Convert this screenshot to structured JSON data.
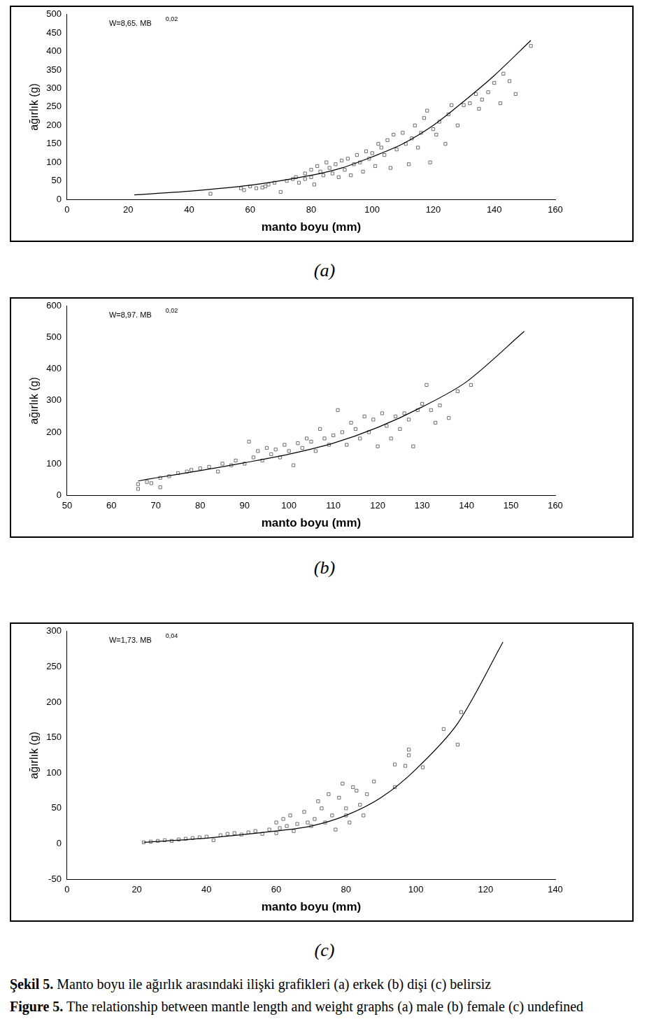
{
  "chart_data": [
    {
      "type": "scatter",
      "caption": "(a)",
      "x_label": "manto boyu (mm)",
      "y_label": "ağırlık (g)",
      "annotation": {
        "text": "W=8,65. MB",
        "superscript": "0,02"
      },
      "xlim": [
        0,
        160
      ],
      "xticks": [
        0,
        20,
        40,
        60,
        80,
        100,
        120,
        140,
        160
      ],
      "ylim": [
        0,
        500
      ],
      "yticks": [
        0,
        50,
        100,
        150,
        200,
        250,
        300,
        350,
        400,
        450,
        500
      ],
      "grid": false,
      "series": [
        {
          "type": "scatter",
          "marker": "square",
          "color": "#6e6e6e",
          "x": [
            47,
            57,
            58,
            60,
            62,
            64,
            65,
            66,
            68,
            70,
            72,
            74,
            75,
            76,
            78,
            78,
            80,
            80,
            81,
            82,
            83,
            84,
            85,
            86,
            87,
            88,
            89,
            90,
            91,
            92,
            93,
            94,
            95,
            96,
            97,
            98,
            99,
            100,
            101,
            102,
            103,
            104,
            105,
            106,
            107,
            108,
            110,
            111,
            112,
            113,
            114,
            115,
            116,
            117,
            118,
            119,
            120,
            121,
            122,
            124,
            125,
            126,
            128,
            130,
            132,
            134,
            135,
            136,
            138,
            140,
            142,
            143,
            145,
            147,
            152
          ],
          "values": [
            15,
            30,
            25,
            35,
            30,
            32,
            35,
            40,
            45,
            20,
            50,
            55,
            60,
            45,
            55,
            70,
            60,
            80,
            40,
            90,
            75,
            65,
            100,
            85,
            70,
            95,
            60,
            105,
            80,
            110,
            65,
            95,
            120,
            100,
            75,
            130,
            110,
            125,
            90,
            150,
            140,
            120,
            160,
            85,
            175,
            135,
            180,
            150,
            95,
            165,
            200,
            140,
            180,
            220,
            240,
            100,
            190,
            175,
            210,
            150,
            230,
            255,
            200,
            255,
            260,
            285,
            245,
            270,
            290,
            315,
            260,
            340,
            320,
            285,
            415
          ]
        },
        {
          "type": "line",
          "line_style": "solid",
          "color": "#000000",
          "x": [
            22,
            40,
            60,
            80,
            90,
            100,
            110,
            120,
            130,
            140,
            152
          ],
          "values": [
            12,
            22,
            38,
            65,
            85,
            115,
            150,
            200,
            265,
            335,
            430
          ]
        }
      ]
    },
    {
      "type": "scatter",
      "caption": "(b)",
      "x_label": "manto boyu (mm)",
      "y_label": "ağırlık (g)",
      "annotation": {
        "text": "W=8,97. MB",
        "superscript": "0,02"
      },
      "xlim": [
        50,
        160
      ],
      "xticks": [
        50,
        60,
        70,
        80,
        90,
        100,
        110,
        120,
        130,
        140,
        150,
        160
      ],
      "ylim": [
        0,
        600
      ],
      "yticks": [
        0,
        100,
        200,
        300,
        400,
        500,
        600
      ],
      "grid": false,
      "series": [
        {
          "type": "scatter",
          "marker": "square",
          "color": "#6e6e6e",
          "x": [
            66,
            66,
            68,
            69,
            71,
            71,
            73,
            75,
            77,
            78,
            80,
            82,
            84,
            85,
            87,
            88,
            90,
            91,
            92,
            93,
            94,
            95,
            96,
            97,
            98,
            99,
            100,
            101,
            102,
            103,
            104,
            105,
            106,
            107,
            108,
            109,
            110,
            111,
            112,
            113,
            114,
            115,
            116,
            117,
            118,
            119,
            120,
            121,
            122,
            123,
            124,
            125,
            126,
            127,
            128,
            129,
            130,
            131,
            132,
            133,
            134,
            136,
            138,
            141
          ],
          "values": [
            20,
            35,
            42,
            38,
            25,
            55,
            60,
            70,
            75,
            80,
            85,
            90,
            75,
            100,
            95,
            110,
            100,
            170,
            120,
            140,
            110,
            150,
            130,
            145,
            120,
            160,
            140,
            95,
            165,
            150,
            180,
            170,
            140,
            210,
            180,
            160,
            190,
            270,
            200,
            160,
            230,
            210,
            180,
            250,
            200,
            240,
            155,
            260,
            220,
            180,
            250,
            210,
            260,
            240,
            155,
            270,
            290,
            350,
            270,
            230,
            285,
            245,
            330,
            350
          ]
        },
        {
          "type": "line",
          "line_style": "solid",
          "color": "#000000",
          "x": [
            66,
            70,
            80,
            90,
            100,
            110,
            120,
            130,
            140,
            153
          ],
          "values": [
            45,
            55,
            78,
            103,
            130,
            165,
            215,
            280,
            360,
            520
          ]
        }
      ]
    },
    {
      "type": "scatter",
      "caption": "(c)",
      "x_label": "manto boyu (mm)",
      "y_label": "ağırlık (g)",
      "annotation": {
        "text": "W=1,73. MB",
        "superscript": "0,04"
      },
      "xlim": [
        0,
        140
      ],
      "xticks": [
        0,
        20,
        40,
        60,
        80,
        100,
        120,
        140
      ],
      "ylim": [
        -50,
        300
      ],
      "yticks": [
        -50,
        0,
        50,
        100,
        150,
        200,
        250,
        300
      ],
      "grid": false,
      "series": [
        {
          "type": "scatter",
          "marker": "square",
          "color": "#6e6e6e",
          "x": [
            22,
            24,
            26,
            28,
            30,
            32,
            34,
            36,
            38,
            40,
            42,
            44,
            46,
            48,
            50,
            52,
            54,
            56,
            58,
            60,
            60,
            61,
            62,
            63,
            64,
            65,
            66,
            68,
            69,
            70,
            71,
            72,
            73,
            74,
            75,
            76,
            77,
            78,
            79,
            80,
            80,
            81,
            82,
            83,
            84,
            85,
            86,
            88,
            94,
            94,
            97,
            98,
            98,
            102,
            108,
            112,
            113
          ],
          "values": [
            2,
            3,
            4,
            5,
            4,
            6,
            7,
            8,
            9,
            10,
            5,
            12,
            14,
            15,
            13,
            16,
            18,
            14,
            20,
            15,
            30,
            22,
            35,
            25,
            40,
            18,
            28,
            45,
            30,
            25,
            35,
            60,
            50,
            30,
            70,
            40,
            20,
            65,
            85,
            40,
            50,
            30,
            80,
            75,
            55,
            40,
            70,
            88,
            112,
            80,
            110,
            125,
            133,
            108,
            162,
            140,
            186
          ]
        },
        {
          "type": "line",
          "line_style": "solid",
          "color": "#000000",
          "x": [
            22,
            40,
            60,
            70,
            80,
            90,
            100,
            112,
            125
          ],
          "values": [
            2,
            8,
            18,
            25,
            40,
            65,
            105,
            170,
            285
          ]
        }
      ]
    }
  ],
  "figure_caption": [
    {
      "label": "Şekil 5.",
      "text": " Manto boyu ile ağırlık arasındaki ilişki grafikleri (a) erkek (b) dişi (c) belirsiz"
    },
    {
      "label": "Figure 5.",
      "text": " The relationship between mantle length and weight graphs (a) male (b) female (c) undefined"
    }
  ]
}
